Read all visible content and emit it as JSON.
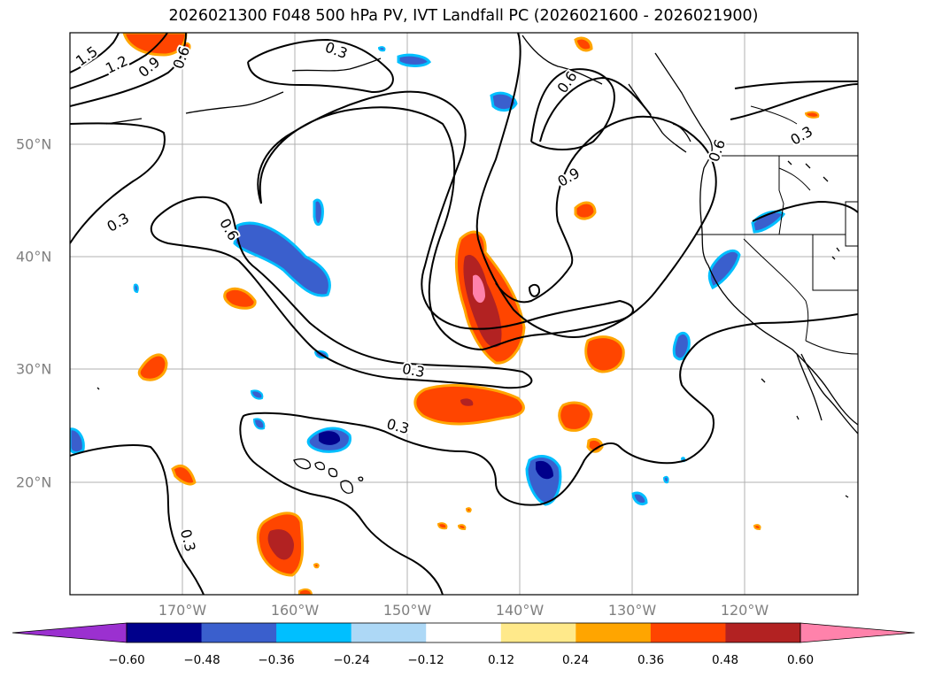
{
  "title": "2026021300 F048 500 hPa PV, IVT Landfall PC (2026021600 - 2026021900)",
  "axes": {
    "lon_ticks": [
      "170°W",
      "160°W",
      "150°W",
      "140°W",
      "130°W",
      "120°W"
    ],
    "lat_ticks": [
      "50°N",
      "40°N",
      "30°N",
      "20°N"
    ]
  },
  "contour_labels": {
    "l15": "1.5",
    "l12": "1.2",
    "l09a": "0.9",
    "l06a": "0.6",
    "l03a": "0.3",
    "l06b": "0.6",
    "l09b": "0.9",
    "l06c": "0.6",
    "l03b": "0.3",
    "l03c": "0.3",
    "l06d": "0.6",
    "l03d": "0.3",
    "l03e": "0.3",
    "l03f": "0.3"
  },
  "colorbar": {
    "ticks": [
      "−0.60",
      "−0.48",
      "−0.36",
      "−0.24",
      "−0.12",
      "0.12",
      "0.24",
      "0.36",
      "0.48",
      "0.60"
    ],
    "colors": [
      "#9b30d0",
      "#00008b",
      "#3a5fcd",
      "#00bfff",
      "#add8f6",
      "#ffffff",
      "#ffe98a",
      "#ffa500",
      "#ff4500",
      "#b22222",
      "#ff82ab",
      "#ff82ab"
    ]
  }
}
